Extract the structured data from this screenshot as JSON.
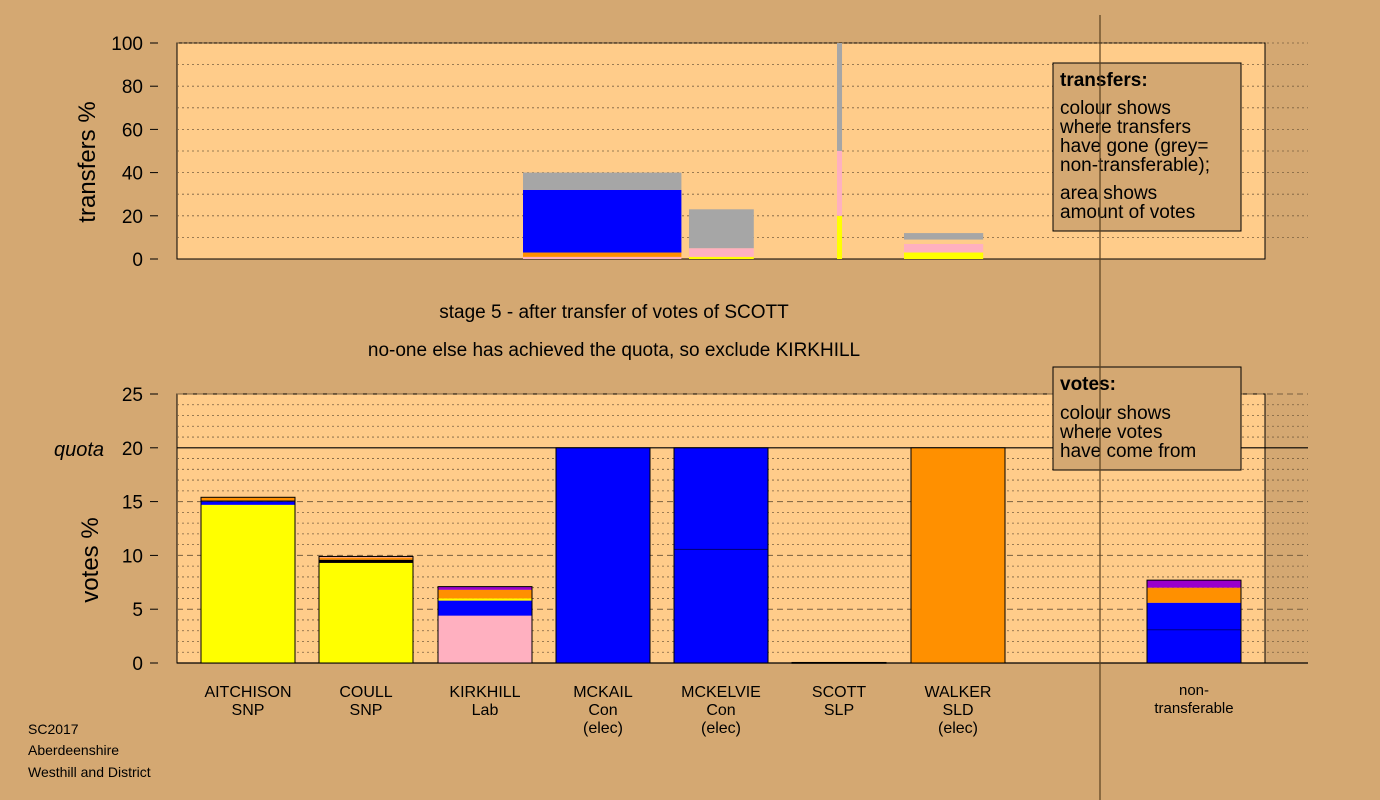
{
  "caption": {
    "stage": "stage 5 - after transfer of votes of SCOTT",
    "note": "no-one else has achieved the quota, so exclude KIRKHILL"
  },
  "footer": [
    "SC2017",
    "Aberdeenshire",
    "Westhill and District"
  ],
  "colors": {
    "background": "#d4a872",
    "plot_bg": "#ffcc8a",
    "SNP": "#ffff00",
    "Con": "#0000ff",
    "Lab": "#ffb0c0",
    "SLD": "#ff9000",
    "SLP": "#cc0000",
    "nontransferable": "#a6a6a6",
    "other": "#9900cc"
  },
  "chart_data": [
    {
      "type": "bar",
      "name_role": "transfers panel",
      "ylabel": "transfers %",
      "ylim": [
        0,
        100
      ],
      "yticks": [
        0,
        20,
        40,
        60,
        80,
        100
      ],
      "legend": {
        "title": "transfers:",
        "lines": [
          "colour shows",
          "where transfers",
          "have gone (grey=",
          "non-transferable);",
          "area shows",
          "amount of votes"
        ],
        "placement": "top-right"
      },
      "bars": [
        {
          "source": "MCKAIL",
          "width_share": 2.2,
          "segments": [
            {
              "party": "Lab",
              "value": 1,
              "color": "#ffb0c0"
            },
            {
              "party": "Con",
              "value": 2,
              "color": "#ff9000"
            },
            {
              "party": "Con",
              "value": 29,
              "color": "#0000ff"
            },
            {
              "party": "non-transferable",
              "value": 8,
              "color": "#a6a6a6"
            }
          ]
        },
        {
          "source": "MCKELVIE",
          "width_share": 0.9,
          "segments": [
            {
              "party": "SNP",
              "value": 1,
              "color": "#ffff00"
            },
            {
              "party": "Lab",
              "value": 4,
              "color": "#ffb0c0"
            },
            {
              "party": "non-transferable",
              "value": 18,
              "color": "#a6a6a6"
            }
          ]
        },
        {
          "source": "SCOTT",
          "width_share": 0.07,
          "segments": [
            {
              "party": "SNP",
              "value": 20,
              "color": "#ffff00"
            },
            {
              "party": "Lab",
              "value": 30,
              "color": "#ffb0c0"
            },
            {
              "party": "non-transferable",
              "value": 50,
              "color": "#a6a6a6"
            }
          ]
        },
        {
          "source": "WALKER",
          "width_share": 1.1,
          "segments": [
            {
              "party": "SNP",
              "value": 3,
              "color": "#ffff00"
            },
            {
              "party": "Lab",
              "value": 4,
              "color": "#ffb0c0"
            },
            {
              "party": "Con",
              "value": 2,
              "color": "#ffcc8a"
            },
            {
              "party": "non-transferable",
              "value": 3,
              "color": "#a6a6a6"
            }
          ]
        }
      ]
    },
    {
      "type": "bar",
      "name_role": "votes panel",
      "ylabel": "votes %",
      "quota_label": "quota",
      "quota": 20,
      "ylim": [
        0,
        25
      ],
      "yticks": [
        0,
        5,
        10,
        15,
        20,
        25
      ],
      "legend": {
        "title": "votes:",
        "lines": [
          "colour shows",
          "where votes",
          "have come from"
        ],
        "placement": "top-right"
      },
      "categories": [
        {
          "name": "AITCHISON",
          "party": "SNP",
          "status": ""
        },
        {
          "name": "COULL",
          "party": "SNP",
          "status": ""
        },
        {
          "name": "KIRKHILL",
          "party": "Lab",
          "status": ""
        },
        {
          "name": "MCKAIL",
          "party": "Con",
          "status": "(elec)"
        },
        {
          "name": "MCKELVIE",
          "party": "Con",
          "status": "(elec)"
        },
        {
          "name": "SCOTT",
          "party": "SLP",
          "status": ""
        },
        {
          "name": "WALKER",
          "party": "SLD",
          "status": "(elec)"
        },
        {
          "name": "",
          "party": "",
          "status": ""
        },
        {
          "name": "non-",
          "party": "transferable",
          "status": ""
        }
      ],
      "stacks": [
        [
          {
            "value": 14.7,
            "color": "#ffff00"
          },
          {
            "value": 0.3,
            "color": "#0000ff"
          },
          {
            "value": 0.1,
            "color": "#000000"
          },
          {
            "value": 0.3,
            "color": "#ff9000"
          }
        ],
        [
          {
            "value": 9.3,
            "color": "#ffff00"
          },
          {
            "value": 0.3,
            "color": "#000000"
          },
          {
            "value": 0.2,
            "color": "#ff9000"
          },
          {
            "value": 0.1,
            "color": "#ffb0c0"
          }
        ],
        [
          {
            "value": 4.4,
            "color": "#ffb0c0"
          },
          {
            "value": 1.4,
            "color": "#0000ff"
          },
          {
            "value": 0.2,
            "color": "#ffff00"
          },
          {
            "value": 0.8,
            "color": "#ff9000"
          },
          {
            "value": 0.3,
            "color": "#9900cc"
          }
        ],
        [
          {
            "value": 20,
            "color": "#0000ff"
          }
        ],
        [
          {
            "value": 10.6,
            "color": "#0000ff",
            "line": true
          },
          {
            "value": 9.4,
            "color": "#0000ff"
          }
        ],
        [
          {
            "value": 0.05,
            "color": "#cc0000"
          }
        ],
        [
          {
            "value": 20,
            "color": "#ff9000"
          }
        ],
        [],
        [
          {
            "value": 3.1,
            "color": "#0000ff",
            "line": true
          },
          {
            "value": 2.5,
            "color": "#0000ff"
          },
          {
            "value": 1.4,
            "color": "#ff9000"
          },
          {
            "value": 0.7,
            "color": "#9900cc"
          }
        ]
      ]
    }
  ]
}
